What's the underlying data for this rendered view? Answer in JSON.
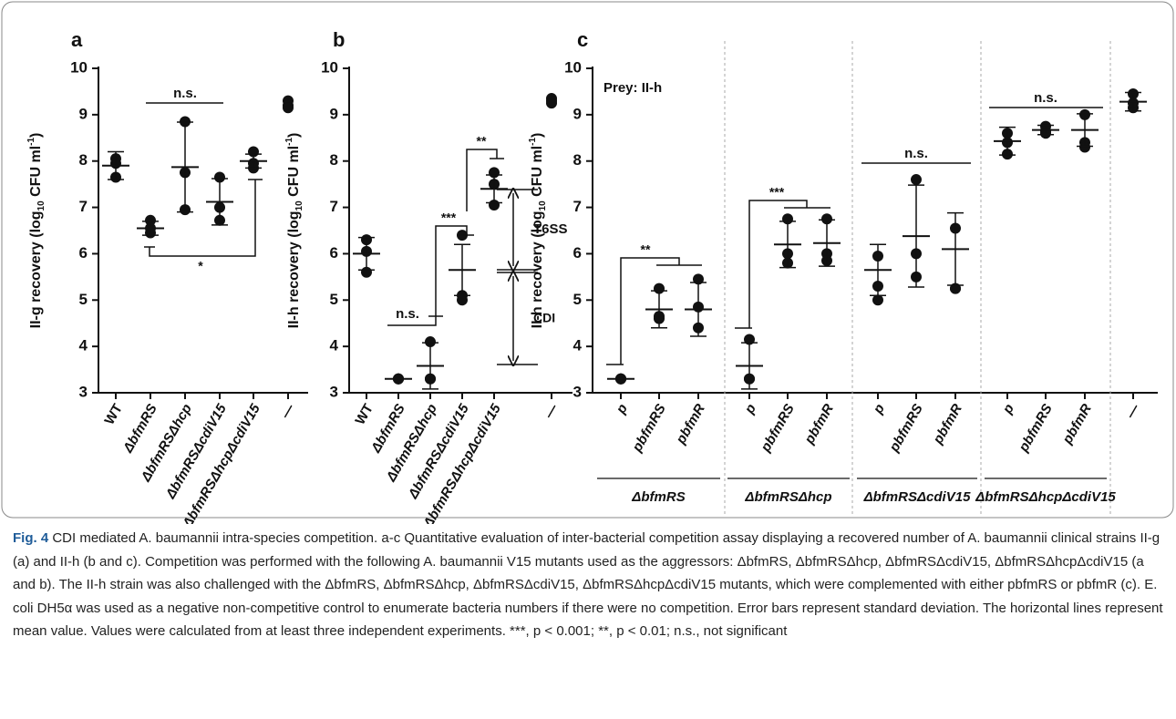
{
  "chart_data": [
    {
      "type": "dotplot",
      "panel": "a",
      "ylabel": [
        "II-g recovery (log",
        "10",
        " CFU ml",
        "-1",
        ")"
      ],
      "categories": [
        "WT",
        "ΔbfmRS",
        "ΔbfmRSΔhcp",
        "ΔbfmRSΔcdiV15",
        "ΔbfmRSΔhcpΔcdiV15",
        "—"
      ],
      "points": [
        [
          8.05,
          7.65,
          7.95
        ],
        [
          6.72,
          6.45,
          6.55
        ],
        [
          8.85,
          7.75,
          6.95
        ],
        [
          7.65,
          7.0,
          6.72
        ],
        [
          8.2,
          7.95,
          7.85
        ],
        [
          9.3,
          9.2,
          9.15
        ]
      ],
      "mean": [
        7.9,
        6.55,
        7.87,
        7.12,
        8.0,
        null
      ],
      "sd": [
        0.3,
        0.15,
        0.97,
        0.5,
        0.15,
        null
      ],
      "ylim": [
        3,
        10
      ],
      "yticks": [
        3,
        4,
        5,
        6,
        7,
        8,
        9,
        10
      ],
      "annotations": [
        "n.s.",
        "*"
      ]
    },
    {
      "type": "dotplot",
      "panel": "b",
      "ylabel": [
        "II-h recovery (log",
        "10",
        " CFU ml",
        "-1",
        ")"
      ],
      "categories": [
        "WT",
        "ΔbfmRS",
        "ΔbfmRSΔhcp",
        "ΔbfmRSΔcdiV15",
        "ΔbfmRSΔhcpΔcdiV15",
        "—"
      ],
      "points": [
        [
          6.3,
          6.05,
          5.6
        ],
        [
          3.3,
          3.3,
          3.3
        ],
        [
          4.1,
          3.3,
          3.3
        ],
        [
          6.4,
          5.1,
          5.0
        ],
        [
          7.75,
          7.5,
          7.05
        ],
        [
          9.35,
          9.3,
          9.25
        ]
      ],
      "mean": [
        6.0,
        3.3,
        3.58,
        5.65,
        7.4,
        null
      ],
      "sd": [
        0.35,
        0,
        0.5,
        0.55,
        0.3,
        null
      ],
      "ylim": [
        3,
        10
      ],
      "yticks": [
        3,
        4,
        5,
        6,
        7,
        8,
        9,
        10
      ],
      "annotations": [
        "n.s.",
        "***",
        "**",
        "T6SS",
        "CDI"
      ]
    },
    {
      "type": "dotplot",
      "panel": "c",
      "ylabel": [
        "II-h recovery (log",
        "10",
        " CFU ml",
        "-1",
        ")"
      ],
      "categories": [
        "p",
        "pbfmRS",
        "pbfmR",
        "p",
        "pbfmRS",
        "pbfmR",
        "p",
        "pbfmRS",
        "pbfmR",
        "p",
        "pbfmRS",
        "pbfmR",
        "—"
      ],
      "groups": [
        "ΔbfmRS",
        "ΔbfmRSΔhcp",
        "ΔbfmRSΔcdiV15",
        "ΔbfmRSΔhcpΔcdiV15"
      ],
      "points": [
        [
          3.3,
          3.3,
          3.3
        ],
        [
          5.25,
          4.6,
          4.65
        ],
        [
          5.45,
          4.85,
          4.4
        ],
        [
          4.15,
          3.3,
          3.3
        ],
        [
          6.75,
          6.0,
          5.8
        ],
        [
          6.75,
          6.0,
          5.85
        ],
        [
          5.95,
          5.3,
          5.0
        ],
        [
          7.6,
          6.0,
          5.5
        ],
        [
          6.55,
          5.25,
          5.25
        ],
        [
          8.6,
          8.15,
          8.4
        ],
        [
          8.75,
          8.65,
          8.6
        ],
        [
          9.0,
          8.4,
          8.3
        ],
        [
          9.45,
          9.15,
          9.25
        ]
      ],
      "mean": [
        3.3,
        4.8,
        4.8,
        3.58,
        6.2,
        6.23,
        5.65,
        6.38,
        6.1,
        8.43,
        8.67,
        8.67,
        9.28
      ],
      "sd": [
        0,
        0.4,
        0.58,
        0.5,
        0.5,
        0.5,
        0.55,
        1.1,
        0.78,
        0.3,
        0.1,
        0.35,
        0.2
      ],
      "ylim": [
        3,
        10
      ],
      "yticks": [
        3,
        4,
        5,
        6,
        7,
        8,
        9,
        10
      ],
      "annotations": [
        "Prey: II-h",
        "**",
        "***",
        "n.s.",
        "n.s."
      ]
    }
  ],
  "caption": {
    "label": "Fig. 4",
    "text": "CDI mediated A. baumannii intra-species competition. a-c Quantitative evaluation of inter-bacterial competition assay displaying a recovered number of A. baumannii clinical strains II-g (a) and II-h (b and c). Competition was performed with the following A. baumannii V15 mutants used as the aggressors: ΔbfmRS, ΔbfmRSΔhcp, ΔbfmRSΔcdiV15, ΔbfmRSΔhcpΔcdiV15 (a and b). The II-h strain was also challenged with the ΔbfmRS, ΔbfmRSΔhcp, ΔbfmRSΔcdiV15, ΔbfmRSΔhcpΔcdiV15 mutants, which were complemented with either pbfmRS or pbfmR (c). E. coli DH5α was used as a negative non-competitive control to enumerate bacteria numbers if there were no competition. Error bars represent standard deviation. The horizontal lines represent mean value. Values were calculated from at least three independent experiments. ***, p < 0.001; **, p < 0.01; n.s., not significant"
  }
}
